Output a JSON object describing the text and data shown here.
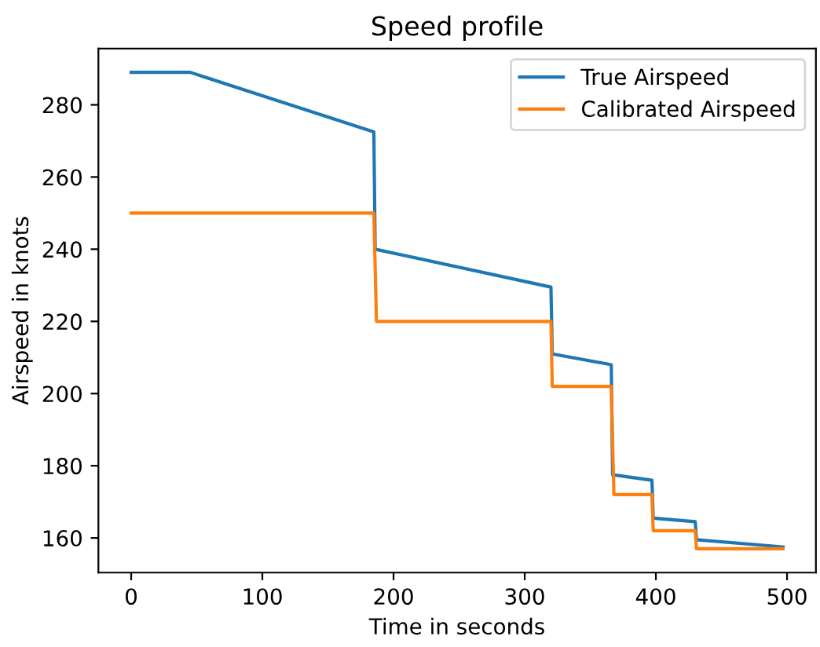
{
  "chart_data": {
    "type": "line",
    "title": "Speed profile",
    "xlabel": "Time in seconds",
    "ylabel": "Airspeed in knots",
    "xlim": [
      -25,
      522
    ],
    "ylim": [
      150.4,
      295.6
    ],
    "xticks": [
      0,
      100,
      200,
      300,
      400,
      500
    ],
    "yticks": [
      160,
      180,
      200,
      220,
      240,
      260,
      280
    ],
    "grid": false,
    "legend": "top right",
    "series": [
      {
        "name": "True Airspeed",
        "color": "#1f77b4",
        "x": [
          0,
          45,
          185,
          186,
          320,
          321,
          366,
          367,
          397,
          398,
          430,
          431,
          497
        ],
        "values": [
          289,
          289,
          272.5,
          240,
          229.5,
          211,
          208,
          177.5,
          176,
          165.5,
          164.5,
          159.5,
          157.5
        ]
      },
      {
        "name": "Calibrated Airspeed",
        "color": "#ff7f0e",
        "x": [
          0,
          185,
          187,
          320,
          321,
          366,
          368,
          397,
          398,
          430,
          431,
          497
        ],
        "values": [
          250,
          250,
          220,
          220,
          202,
          202,
          172,
          172,
          162,
          162,
          157,
          157
        ]
      }
    ]
  }
}
